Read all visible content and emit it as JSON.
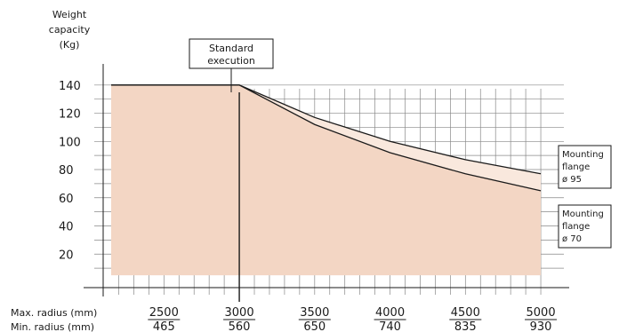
{
  "chart_data": {
    "type": "area",
    "ylabel": [
      "Weight",
      "capacity",
      "(Kg)"
    ],
    "y_ticks": [
      20,
      40,
      60,
      80,
      100,
      120,
      140
    ],
    "ylim": [
      0,
      155
    ],
    "x_ticks": [
      {
        "max": "2500",
        "min": "465"
      },
      {
        "max": "3000",
        "min": "560"
      },
      {
        "max": "3500",
        "min": "650"
      },
      {
        "max": "4000",
        "min": "740"
      },
      {
        "max": "4500",
        "min": "835"
      },
      {
        "max": "5000",
        "min": "930"
      }
    ],
    "xlim": [
      2150,
      5100
    ],
    "x_row_labels": [
      "Max. radius (mm)",
      "Min. radius (mm)"
    ],
    "annotation": [
      "Standard",
      "execution"
    ],
    "series": [
      {
        "name": [
          "Mounting",
          "flange",
          "ø 95"
        ],
        "x": [
          2150,
          3000,
          3500,
          4000,
          4500,
          5000
        ],
        "y": [
          140,
          140,
          117,
          100,
          87,
          77
        ]
      },
      {
        "name": [
          "Mounting",
          "flange",
          "ø 70"
        ],
        "x": [
          2150,
          3000,
          3500,
          4000,
          4500,
          5000
        ],
        "y": [
          140,
          140,
          112,
          92,
          77,
          65
        ]
      }
    ],
    "grid": true,
    "colors": {
      "fill": "#f3d6c4",
      "band": "#f9e8dd",
      "line": "#1a1a1a",
      "grid": "#888888"
    }
  }
}
